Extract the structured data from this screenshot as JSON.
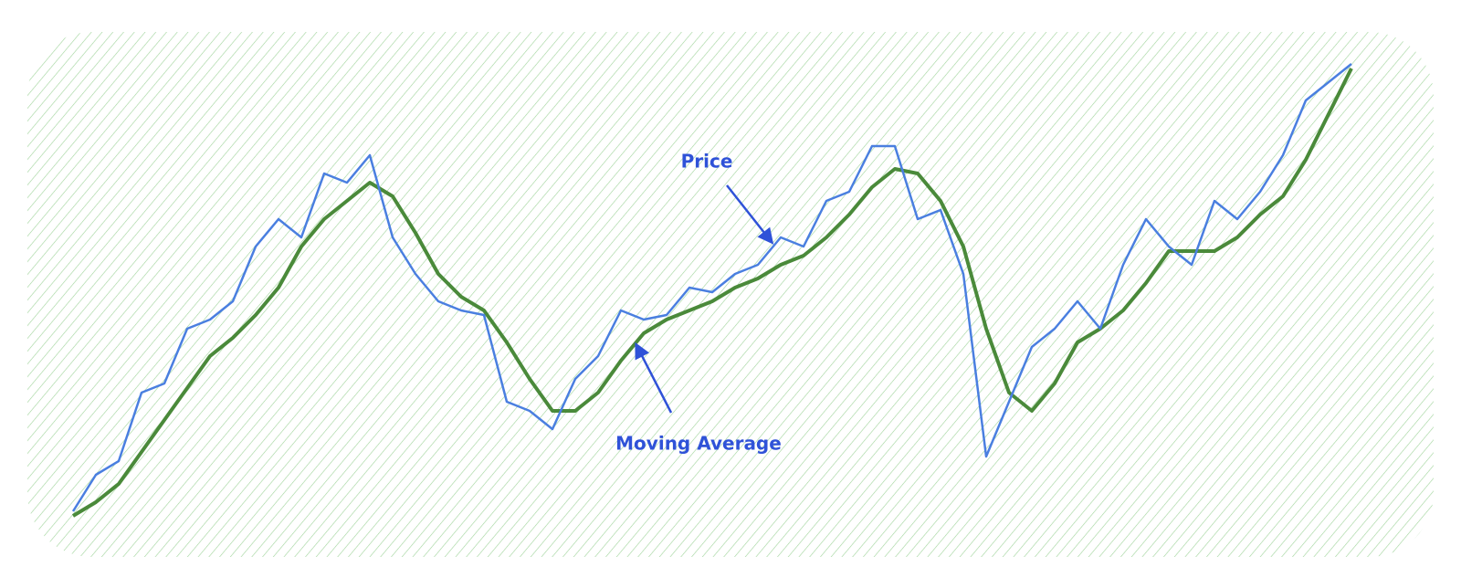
{
  "chart_data": {
    "type": "line",
    "series": [
      {
        "name": "Price",
        "color": "#4a7fe0",
        "values": [
          40,
          80,
          95,
          170,
          180,
          240,
          250,
          270,
          330,
          360,
          340,
          410,
          400,
          430,
          340,
          300,
          270,
          260,
          255,
          160,
          150,
          130,
          185,
          210,
          260,
          250,
          255,
          285,
          280,
          300,
          310,
          340,
          330,
          380,
          390,
          440,
          440,
          360,
          370,
          300,
          100,
          160,
          220,
          240,
          270,
          240,
          310,
          360,
          330,
          310,
          380,
          360,
          390,
          430,
          490,
          510,
          530
        ]
      },
      {
        "name": "Moving Average",
        "color": "#4a8a3a",
        "values": [
          35,
          50,
          70,
          105,
          140,
          175,
          210,
          230,
          255,
          285,
          330,
          360,
          380,
          400,
          385,
          345,
          300,
          275,
          260,
          225,
          185,
          150,
          150,
          170,
          205,
          235,
          250,
          260,
          270,
          285,
          295,
          310,
          320,
          340,
          365,
          395,
          415,
          410,
          380,
          330,
          240,
          170,
          150,
          180,
          225,
          240,
          260,
          290,
          325,
          325,
          325,
          340,
          365,
          385,
          425,
          475,
          525
        ]
      }
    ]
  }
}
